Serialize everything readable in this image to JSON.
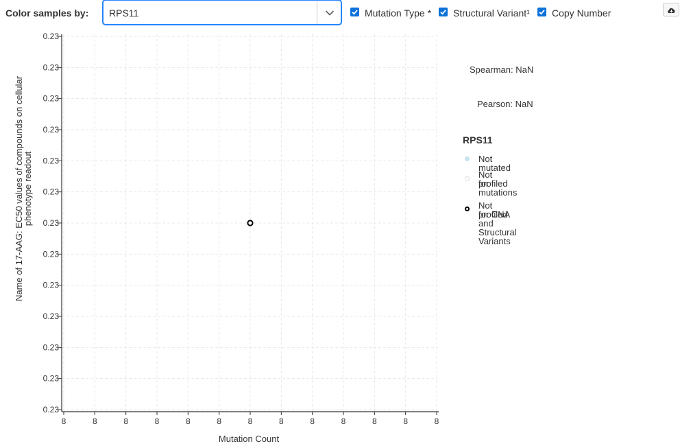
{
  "toolbar": {
    "color_label": "Color samples by:",
    "gene_select": {
      "value": "RPS11"
    },
    "checkboxes": [
      {
        "label": "Mutation Type *",
        "checked": true
      },
      {
        "label": "Structural Variant¹",
        "checked": true
      },
      {
        "label": "Copy Number",
        "checked": true
      }
    ],
    "download_icon": "cloud-download-icon"
  },
  "stats": {
    "spearman": "Spearman: NaN",
    "pearson": "Pearson: NaN"
  },
  "legend": {
    "title": "RPS11",
    "items": [
      {
        "line1": "Not mutated",
        "line2": "",
        "fill": "#c6e3f0",
        "stroke": "#c6e3f0"
      },
      {
        "line1": "Not profiled",
        "line2": "for mutations",
        "fill": "#ffffff",
        "stroke": "#dddddd"
      },
      {
        "line1": "Not profiled",
        "line2": "for CNA and Structural Variants",
        "fill": "#ffffff",
        "stroke": "#000000"
      }
    ]
  },
  "chart_data": {
    "type": "scatter",
    "xlabel": "Mutation Count",
    "ylabel": "Name of 17-AAG: EC50 values of compounds on cellular phenotype readout",
    "x_tick_labels": [
      "8",
      "8",
      "8",
      "8",
      "8",
      "8",
      "8",
      "8",
      "8",
      "8",
      "8",
      "8",
      "8"
    ],
    "y_tick_labels": [
      "0.23",
      "0.23",
      "0.23",
      "0.23",
      "0.23",
      "0.23",
      "0.23",
      "0.23",
      "0.23",
      "0.23",
      "0.23",
      "0.23",
      "0.23"
    ],
    "grid": true,
    "points": [
      {
        "x": 8,
        "y": 0.23,
        "category": "Not profiled for CNA and Structural Variants"
      }
    ]
  }
}
